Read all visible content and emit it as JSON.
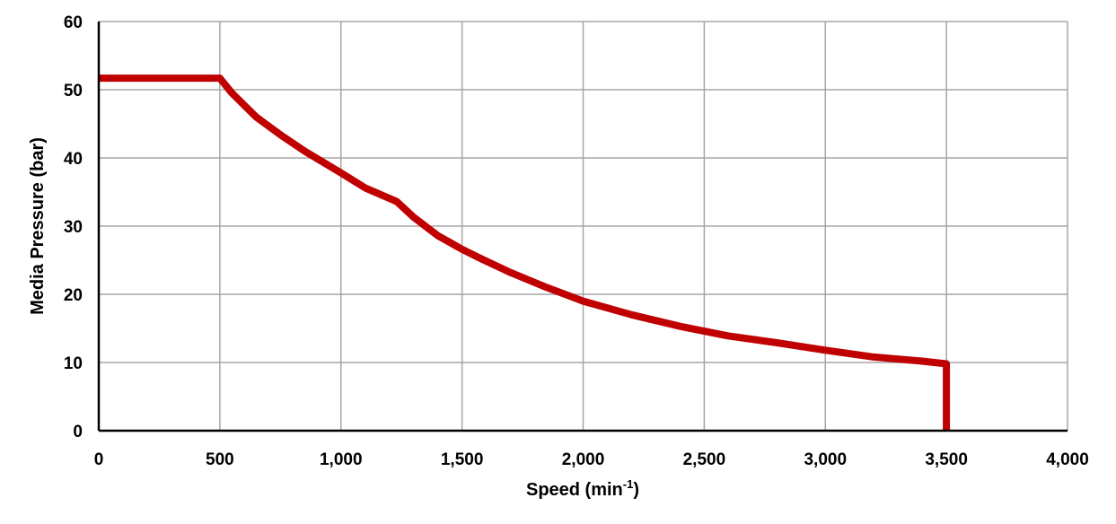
{
  "chart_data": {
    "type": "line",
    "title": "",
    "xlabel": "Speed (min",
    "xlabel_superscript": "-1",
    "xlabel_suffix": ")",
    "ylabel": "Media Pressure (bar)",
    "xlim": [
      0,
      4000
    ],
    "ylim": [
      0,
      60
    ],
    "xticks": [
      0,
      500,
      1000,
      1500,
      2000,
      2500,
      3000,
      3500,
      4000
    ],
    "xtick_labels": [
      "0",
      "500",
      "1,000",
      "1,500",
      "2,000",
      "2,500",
      "3,000",
      "3,500",
      "4,000"
    ],
    "yticks": [
      0,
      10,
      20,
      30,
      40,
      50,
      60
    ],
    "ytick_labels": [
      "0",
      "10",
      "20",
      "30",
      "40",
      "50",
      "60"
    ],
    "grid": true,
    "legend": "none",
    "series": [
      {
        "color": "#c00000",
        "x": [
          0,
          500,
          550,
          650,
          750,
          850,
          1000,
          1100,
          1230,
          1300,
          1400,
          1500,
          1580,
          1700,
          1850,
          2000,
          2200,
          2400,
          2600,
          2800,
          3000,
          3200,
          3400,
          3500,
          3500
        ],
        "y": [
          51.7,
          51.7,
          49.5,
          46,
          43.4,
          41,
          37.8,
          35.6,
          33.6,
          31.3,
          28.6,
          26.6,
          25.2,
          23.2,
          21,
          19,
          17,
          15.3,
          13.9,
          12.9,
          11.8,
          10.8,
          10.2,
          9.8,
          0
        ]
      }
    ]
  }
}
